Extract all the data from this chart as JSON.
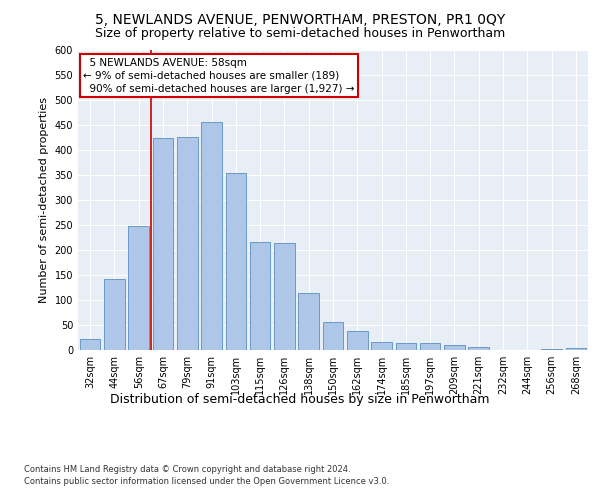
{
  "title": "5, NEWLANDS AVENUE, PENWORTHAM, PRESTON, PR1 0QY",
  "subtitle": "Size of property relative to semi-detached houses in Penwortham",
  "xlabel": "Distribution of semi-detached houses by size in Penwortham",
  "ylabel": "Number of semi-detached properties",
  "footer1": "Contains HM Land Registry data © Crown copyright and database right 2024.",
  "footer2": "Contains public sector information licensed under the Open Government Licence v3.0.",
  "categories": [
    "32sqm",
    "44sqm",
    "56sqm",
    "67sqm",
    "79sqm",
    "91sqm",
    "103sqm",
    "115sqm",
    "126sqm",
    "138sqm",
    "150sqm",
    "162sqm",
    "174sqm",
    "185sqm",
    "197sqm",
    "209sqm",
    "221sqm",
    "232sqm",
    "244sqm",
    "256sqm",
    "268sqm"
  ],
  "values": [
    23,
    143,
    248,
    425,
    427,
    457,
    355,
    217,
    215,
    115,
    57,
    39,
    17,
    14,
    14,
    11,
    6,
    0,
    0,
    3,
    5
  ],
  "bar_color": "#aec6e8",
  "bar_edge_color": "#5a8fc0",
  "property_label": "5 NEWLANDS AVENUE: 58sqm",
  "pct_smaller": 9,
  "count_smaller": 189,
  "pct_larger": 90,
  "count_larger": 1927,
  "vline_x": 2.5,
  "ylim": [
    0,
    600
  ],
  "yticks": [
    0,
    50,
    100,
    150,
    200,
    250,
    300,
    350,
    400,
    450,
    500,
    550,
    600
  ],
  "annotation_box_color": "#ffffff",
  "annotation_box_edge_color": "#cc0000",
  "vline_color": "#cc0000",
  "bg_color": "#e8eef5",
  "title_fontsize": 10,
  "subtitle_fontsize": 9,
  "ylabel_fontsize": 8,
  "xlabel_fontsize": 9,
  "tick_fontsize": 7,
  "footer_fontsize": 6,
  "annot_fontsize": 7.5
}
